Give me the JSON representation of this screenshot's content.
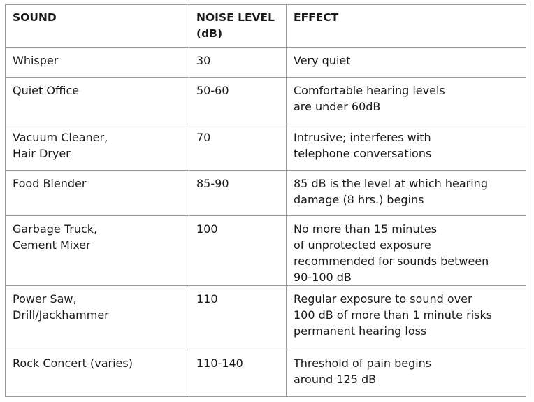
{
  "table": {
    "headers": [
      "SOUND",
      "NOISE LEVEL\n(dB)",
      "EFFECT"
    ],
    "rows": [
      [
        "Whisper",
        "30",
        "Very quiet"
      ],
      [
        "Quiet Office",
        "50-60",
        "Comfortable hearing levels\nare under 60dB"
      ],
      [
        "Vacuum Cleaner,\nHair Dryer",
        "70",
        "Intrusive; interferes with\ntelephone conversations"
      ],
      [
        "Food Blender",
        "85-90",
        "85 dB is the level at which hearing\ndamage (8 hrs.) begins"
      ],
      [
        "Garbage Truck,\nCement Mixer",
        "100",
        "No more than 15 minutes\nof unprotected exposure\nrecommended for sounds between\n90-100 dB"
      ],
      [
        "Power Saw,\nDrill/Jackhammer",
        "110",
        "Regular exposure to sound over\n100 dB of more than 1 minute risks\npermanent hearing loss"
      ],
      [
        "Rock Concert (varies)",
        "110-140",
        "Threshold of pain begins\naround 125 dB"
      ]
    ]
  }
}
